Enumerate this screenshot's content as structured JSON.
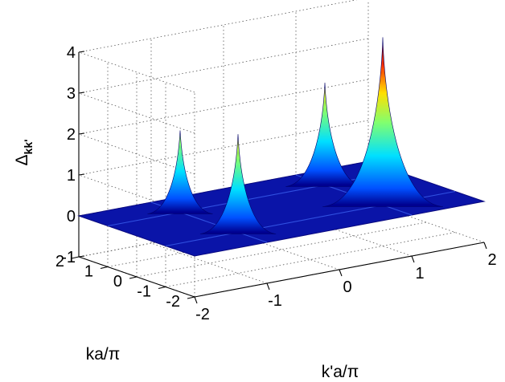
{
  "chart_data": {
    "type": "surface",
    "title": "",
    "zlabel": "Δ",
    "zlabel_sub": "kk'",
    "xlabel": "k'a/π",
    "ylabel": "ka/π",
    "xlim": [
      -2,
      2
    ],
    "ylim": [
      -2,
      2
    ],
    "zlim": [
      -1,
      4
    ],
    "x_ticks": [
      "-2",
      "-1",
      "0",
      "1",
      "2"
    ],
    "y_ticks": [
      "-2",
      "-1",
      "0",
      "1",
      "2"
    ],
    "z_ticks": [
      "-1",
      "0",
      "1",
      "2",
      "3",
      "4"
    ],
    "grid": true,
    "colormap": "jet",
    "background_level": 0,
    "peaks": [
      {
        "x": -1.0,
        "y": 1.0,
        "height": 2.0
      },
      {
        "x": -1.0,
        "y": -1.0,
        "height": 2.4
      },
      {
        "x": 1.0,
        "y": 1.0,
        "height": 2.5
      },
      {
        "x": 1.0,
        "y": -1.0,
        "height": 4.1
      }
    ]
  }
}
